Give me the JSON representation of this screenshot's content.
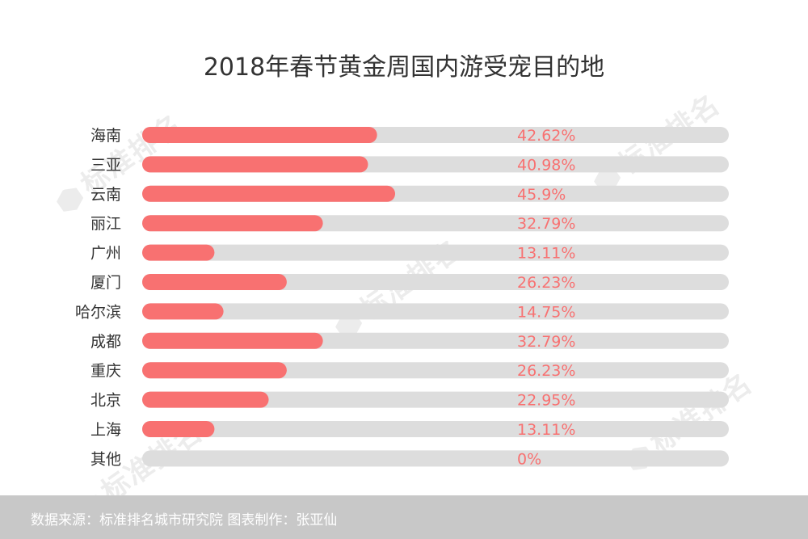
{
  "chart_data": {
    "type": "bar",
    "orientation": "horizontal",
    "title": "2018年春节黄金周国内游受宠目的地",
    "categories": [
      "海南",
      "三亚",
      "云南",
      "丽江",
      "广州",
      "厦门",
      "哈尔滨",
      "成都",
      "重庆",
      "北京",
      "上海",
      "其他"
    ],
    "values": [
      42.62,
      40.98,
      45.9,
      32.79,
      13.11,
      26.23,
      14.75,
      32.79,
      26.23,
      22.95,
      13.11,
      0
    ],
    "value_labels": [
      "42.62%",
      "40.98%",
      "45.9%",
      "32.79%",
      "13.11%",
      "26.23%",
      "14.75%",
      "32.79%",
      "26.23%",
      "22.95%",
      "13.11%",
      "0%"
    ],
    "xlim": [
      0,
      100
    ],
    "grid": false,
    "legend": "none",
    "colors": {
      "bar": "#f87171",
      "track": "#dddddd",
      "label": "#f87171",
      "category": "#333333"
    }
  },
  "watermark": {
    "text": "标准排名"
  },
  "footer": {
    "text": "数据来源：标准排名城市研究院  图表制作：张亚仙",
    "background": "#c8c8c8"
  }
}
